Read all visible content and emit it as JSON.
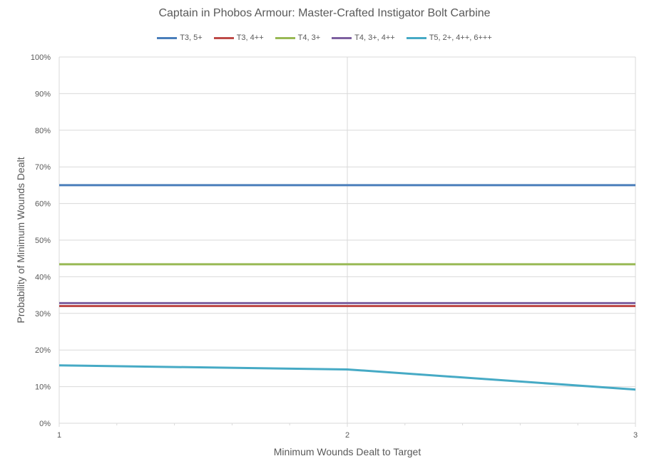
{
  "chart_data": {
    "type": "line",
    "title": "Captain in Phobos Armour: Master-Crafted Instigator Bolt Carbine",
    "xlabel": "Minimum Wounds Dealt  to Target",
    "ylabel": "Probability of Minimum Wounds Dealt",
    "x": [
      1,
      2,
      3
    ],
    "x_tick_labels": [
      "1",
      "2",
      "3"
    ],
    "y_tick_labels": [
      "0%",
      "10%",
      "20%",
      "30%",
      "40%",
      "50%",
      "60%",
      "70%",
      "80%",
      "90%",
      "100%"
    ],
    "ylim": [
      0,
      1
    ],
    "grid": true,
    "legend_position": "top",
    "series": [
      {
        "name": "T3, 5+",
        "color": "#4a7ebb",
        "values": [
          0.65,
          0.65,
          0.65
        ]
      },
      {
        "name": "T3, 4++",
        "color": "#be4b48",
        "values": [
          0.32,
          0.32,
          0.32
        ]
      },
      {
        "name": "T4, 3+",
        "color": "#98b954",
        "values": [
          0.434,
          0.434,
          0.434
        ]
      },
      {
        "name": "T4, 3+, 4++",
        "color": "#7d60a0",
        "values": [
          0.328,
          0.328,
          0.328
        ]
      },
      {
        "name": "T5, 2+, 4++, 6+++",
        "color": "#46aac5",
        "values": [
          0.158,
          0.147,
          0.092
        ]
      }
    ]
  }
}
